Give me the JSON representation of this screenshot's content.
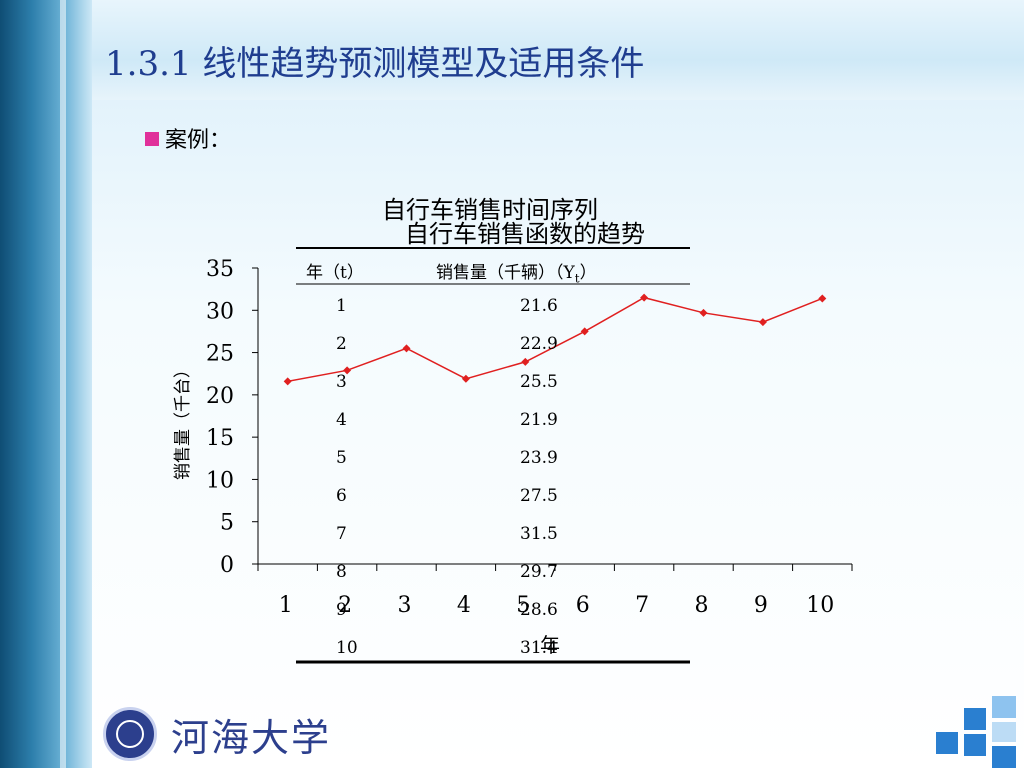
{
  "slide": {
    "title": "1.3.1 线性趋势预测模型及适用条件",
    "bullet": "案例："
  },
  "chart_data": {
    "type": "line",
    "title": "自行车销售时间序列",
    "subtitle": "自行车销售函数的趋势",
    "xlabel": "年",
    "ylabel": "销售量（千台）",
    "categories": [
      "1",
      "2",
      "3",
      "4",
      "5",
      "6",
      "7",
      "8",
      "9",
      "10"
    ],
    "series": [
      {
        "values": [
          21.6,
          22.9,
          25.5,
          21.9,
          23.9,
          27.5,
          31.5,
          29.7,
          28.6,
          31.4
        ]
      }
    ],
    "ylim": [
      0,
      35
    ],
    "yticks": [
      "35",
      "30",
      "25",
      "20",
      "15",
      "10",
      "5",
      "0"
    ],
    "grid": false,
    "colors": {
      "line": "#e02020"
    }
  },
  "table": {
    "headers": [
      "年（t）",
      "销售量（千辆）（Y",
      "t",
      "）"
    ],
    "rows": [
      [
        "1",
        "21.6"
      ],
      [
        "2",
        "22.9"
      ],
      [
        "3",
        "25.5"
      ],
      [
        "4",
        "21.9"
      ],
      [
        "5",
        "23.9"
      ],
      [
        "6",
        "27.5"
      ],
      [
        "7",
        "31.5"
      ],
      [
        "8",
        "29.7"
      ],
      [
        "9",
        "28.6"
      ],
      [
        "10",
        "31.4"
      ]
    ]
  },
  "logo": {
    "text": "河海大学",
    "seal_icon": "university-seal-icon"
  },
  "colors": {
    "title": "#1f3d8f",
    "bullet": "#e0309a",
    "accent_blocks": "#2a7fd0"
  }
}
